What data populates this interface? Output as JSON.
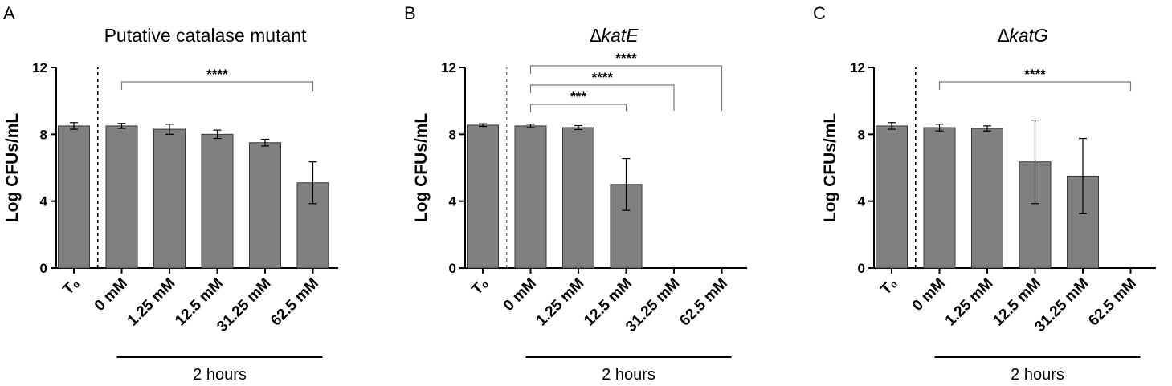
{
  "chart_data": [
    {
      "panel_letter": "A",
      "type": "bar",
      "title": "Putative catalase mutant",
      "title_italic": false,
      "ylabel": "Log CFUs/mL",
      "ylim": [
        0,
        12
      ],
      "yticks": [
        "0",
        "4",
        "8",
        "12"
      ],
      "categories": [
        "T₀",
        "0 mM",
        "1.25 mM",
        "12.5 mM",
        "31.25 mM",
        "62.5 mM"
      ],
      "values": [
        8.5,
        8.5,
        8.3,
        8.0,
        7.5,
        5.1
      ],
      "errors": [
        0.2,
        0.15,
        0.3,
        0.25,
        0.2,
        1.25
      ],
      "group_label": "2 hours",
      "group_span": [
        1,
        5
      ],
      "dashed_separator": "solid-black",
      "significance": [
        {
          "from": 1,
          "to": 5,
          "label": "****"
        }
      ]
    },
    {
      "panel_letter": "B",
      "type": "bar",
      "title": "∆katE",
      "title_italic": true,
      "ylabel": "Log CFUs/mL",
      "ylim": [
        0,
        12
      ],
      "yticks": [
        "0",
        "4",
        "8",
        "12"
      ],
      "categories": [
        "T₀",
        "0 mM",
        "1.25 mM",
        "12.5 mM",
        "31.25 mM",
        "62.5 mM"
      ],
      "values": [
        8.55,
        8.5,
        8.4,
        5.0,
        null,
        null
      ],
      "errors": [
        0.08,
        0.1,
        0.12,
        1.55,
        null,
        null
      ],
      "group_label": "2 hours",
      "group_span": [
        1,
        5
      ],
      "dashed_separator": "light",
      "significance": [
        {
          "from": 1,
          "to": 3,
          "label": "***"
        },
        {
          "from": 1,
          "to": 4,
          "label": "****"
        },
        {
          "from": 1,
          "to": 5,
          "label": "****"
        }
      ]
    },
    {
      "panel_letter": "C",
      "type": "bar",
      "title": "∆katG",
      "title_italic": true,
      "ylabel": "Log CFUs/mL",
      "ylim": [
        0,
        12
      ],
      "yticks": [
        "0",
        "4",
        "8",
        "12"
      ],
      "categories": [
        "T₀",
        "0 mM",
        "1.25 mM",
        "12.5 mM",
        "31.25 mM",
        "62.5 mM"
      ],
      "values": [
        8.5,
        8.4,
        8.35,
        6.35,
        5.5,
        null
      ],
      "errors": [
        0.2,
        0.2,
        0.15,
        2.5,
        2.25,
        null
      ],
      "group_label": "2 hours",
      "group_span": [
        1,
        5
      ],
      "dashed_separator": "solid-black",
      "significance": [
        {
          "from": 1,
          "to": 5,
          "label": "****"
        }
      ]
    }
  ]
}
